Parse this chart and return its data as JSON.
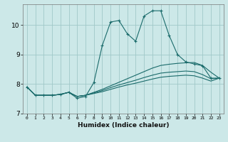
{
  "xlabel": "Humidex (Indice chaleur)",
  "ylabel": "",
  "xlim": [
    -0.5,
    23.5
  ],
  "ylim": [
    7.0,
    10.7
  ],
  "bg_color": "#cce8e8",
  "grid_color": "#a0c8c8",
  "line_color": "#1a6b6b",
  "xticks": [
    0,
    1,
    2,
    3,
    4,
    5,
    6,
    7,
    8,
    9,
    10,
    11,
    12,
    13,
    14,
    15,
    16,
    17,
    18,
    19,
    20,
    21,
    22,
    23
  ],
  "yticks": [
    7,
    8,
    9,
    10
  ],
  "lines": [
    {
      "x": [
        0,
        1,
        2,
        3,
        4,
        5,
        6,
        7,
        8,
        9,
        10,
        11,
        12,
        13,
        14,
        15,
        16,
        17,
        18,
        19,
        20,
        21,
        22,
        23
      ],
      "y": [
        7.9,
        7.62,
        7.62,
        7.62,
        7.65,
        7.72,
        7.52,
        7.58,
        8.05,
        9.3,
        10.1,
        10.15,
        9.7,
        9.45,
        10.3,
        10.48,
        10.48,
        9.65,
        9.0,
        8.75,
        8.68,
        8.62,
        8.2,
        8.2
      ],
      "marker": "+"
    },
    {
      "x": [
        0,
        1,
        2,
        3,
        4,
        5,
        6,
        7,
        8,
        9,
        10,
        11,
        12,
        13,
        14,
        15,
        16,
        17,
        18,
        19,
        20,
        21,
        22,
        23
      ],
      "y": [
        7.9,
        7.62,
        7.62,
        7.62,
        7.65,
        7.72,
        7.58,
        7.62,
        7.72,
        7.82,
        7.94,
        8.06,
        8.18,
        8.3,
        8.42,
        8.54,
        8.63,
        8.67,
        8.7,
        8.72,
        8.73,
        8.63,
        8.4,
        8.2
      ],
      "marker": null
    },
    {
      "x": [
        0,
        1,
        2,
        3,
        4,
        5,
        6,
        7,
        8,
        9,
        10,
        11,
        12,
        13,
        14,
        15,
        16,
        17,
        18,
        19,
        20,
        21,
        22,
        23
      ],
      "y": [
        7.9,
        7.62,
        7.62,
        7.62,
        7.65,
        7.72,
        7.58,
        7.62,
        7.7,
        7.78,
        7.88,
        7.97,
        8.05,
        8.13,
        8.22,
        8.3,
        8.37,
        8.4,
        8.42,
        8.44,
        8.42,
        8.32,
        8.18,
        8.2
      ],
      "marker": null
    },
    {
      "x": [
        0,
        1,
        2,
        3,
        4,
        5,
        6,
        7,
        8,
        9,
        10,
        11,
        12,
        13,
        14,
        15,
        16,
        17,
        18,
        19,
        20,
        21,
        22,
        23
      ],
      "y": [
        7.9,
        7.62,
        7.62,
        7.62,
        7.65,
        7.72,
        7.58,
        7.62,
        7.68,
        7.74,
        7.82,
        7.9,
        7.97,
        8.03,
        8.1,
        8.17,
        8.23,
        8.26,
        8.28,
        8.3,
        8.28,
        8.2,
        8.1,
        8.2
      ],
      "marker": null
    }
  ]
}
